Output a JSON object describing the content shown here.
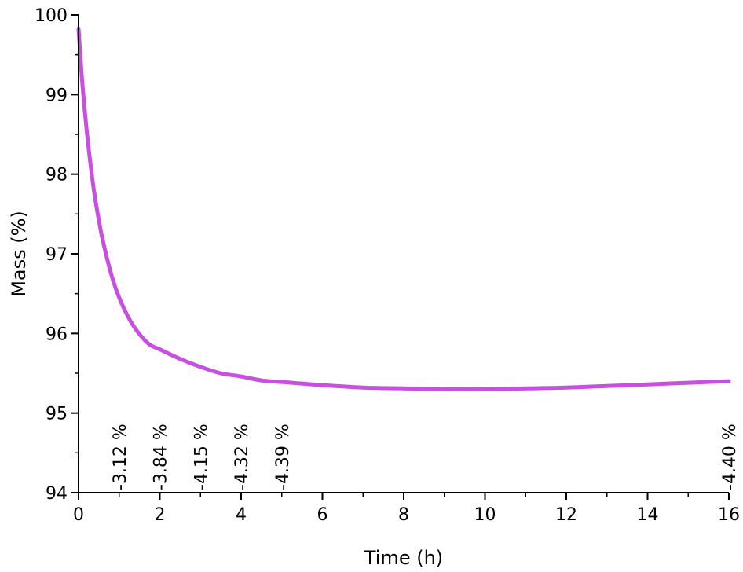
{
  "chart_data": {
    "type": "line",
    "title": "",
    "xlabel": "Time (h)",
    "ylabel": "Mass (%)",
    "xlim": [
      0,
      16
    ],
    "ylim": [
      94,
      100
    ],
    "x_ticks": [
      0,
      2,
      4,
      6,
      8,
      10,
      12,
      14,
      16
    ],
    "y_ticks": [
      94,
      95,
      96,
      97,
      98,
      99,
      100
    ],
    "grid": false,
    "legend": "none",
    "color": "#c94fe0",
    "series": [
      {
        "x": [
          0,
          0.05,
          0.1,
          0.2,
          0.3,
          0.4,
          0.5,
          0.6,
          0.8,
          1.0,
          1.25,
          1.5,
          1.75,
          2.0,
          2.5,
          3.0,
          3.5,
          4.0,
          4.5,
          5.0,
          5.5,
          6.0,
          7.0,
          8.0,
          9.0,
          10.0,
          11.0,
          12.0,
          13.0,
          14.0,
          15.0,
          16.0
        ],
        "values": [
          99.82,
          99.45,
          99.1,
          98.55,
          98.1,
          97.72,
          97.42,
          97.16,
          96.75,
          96.45,
          96.18,
          95.99,
          95.86,
          95.8,
          95.68,
          95.58,
          95.5,
          95.46,
          95.41,
          95.39,
          95.37,
          95.35,
          95.32,
          95.31,
          95.3,
          95.3,
          95.31,
          95.32,
          95.34,
          95.36,
          95.38,
          95.4
        ]
      }
    ],
    "annotations": [
      {
        "x": 1,
        "text": "-3.12 %"
      },
      {
        "x": 2,
        "text": "-3.84 %"
      },
      {
        "x": 3,
        "text": "-4.15 %"
      },
      {
        "x": 4,
        "text": "-4.32 %"
      },
      {
        "x": 5,
        "text": "-4.39 %"
      },
      {
        "x": 16,
        "text": "-4.40 %"
      }
    ]
  }
}
